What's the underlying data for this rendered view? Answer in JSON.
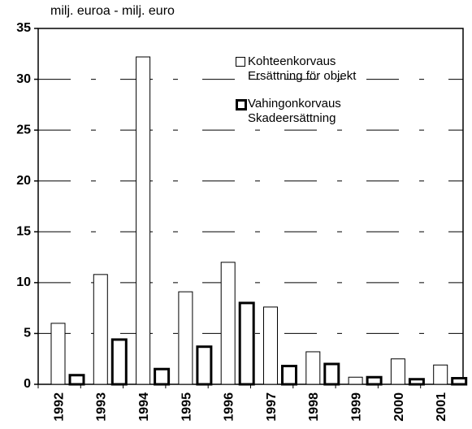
{
  "chart_data": {
    "type": "bar",
    "title": "milj. euroa - milj. euro",
    "categories": [
      "1992",
      "1993",
      "1994",
      "1995",
      "1996",
      "1997",
      "1998",
      "1999",
      "2000",
      "2001"
    ],
    "series": [
      {
        "name": "Kohteenkorvaus\nErsättning för objekt",
        "color": "#ffffff",
        "values": [
          6,
          10.8,
          32.2,
          9.1,
          12,
          7.6,
          3.2,
          0.7,
          2.5,
          1.9
        ]
      },
      {
        "name": "Vahingonkorvaus\nSkadeersättning",
        "color": "#ffffff",
        "values": [
          0.9,
          4.4,
          1.5,
          3.7,
          8,
          1.8,
          2,
          0.7,
          0.5,
          0.6
        ]
      }
    ],
    "ylim": [
      0,
      35
    ],
    "yticks": [
      0,
      5,
      10,
      15,
      20,
      25,
      30,
      35
    ],
    "grid": true
  }
}
